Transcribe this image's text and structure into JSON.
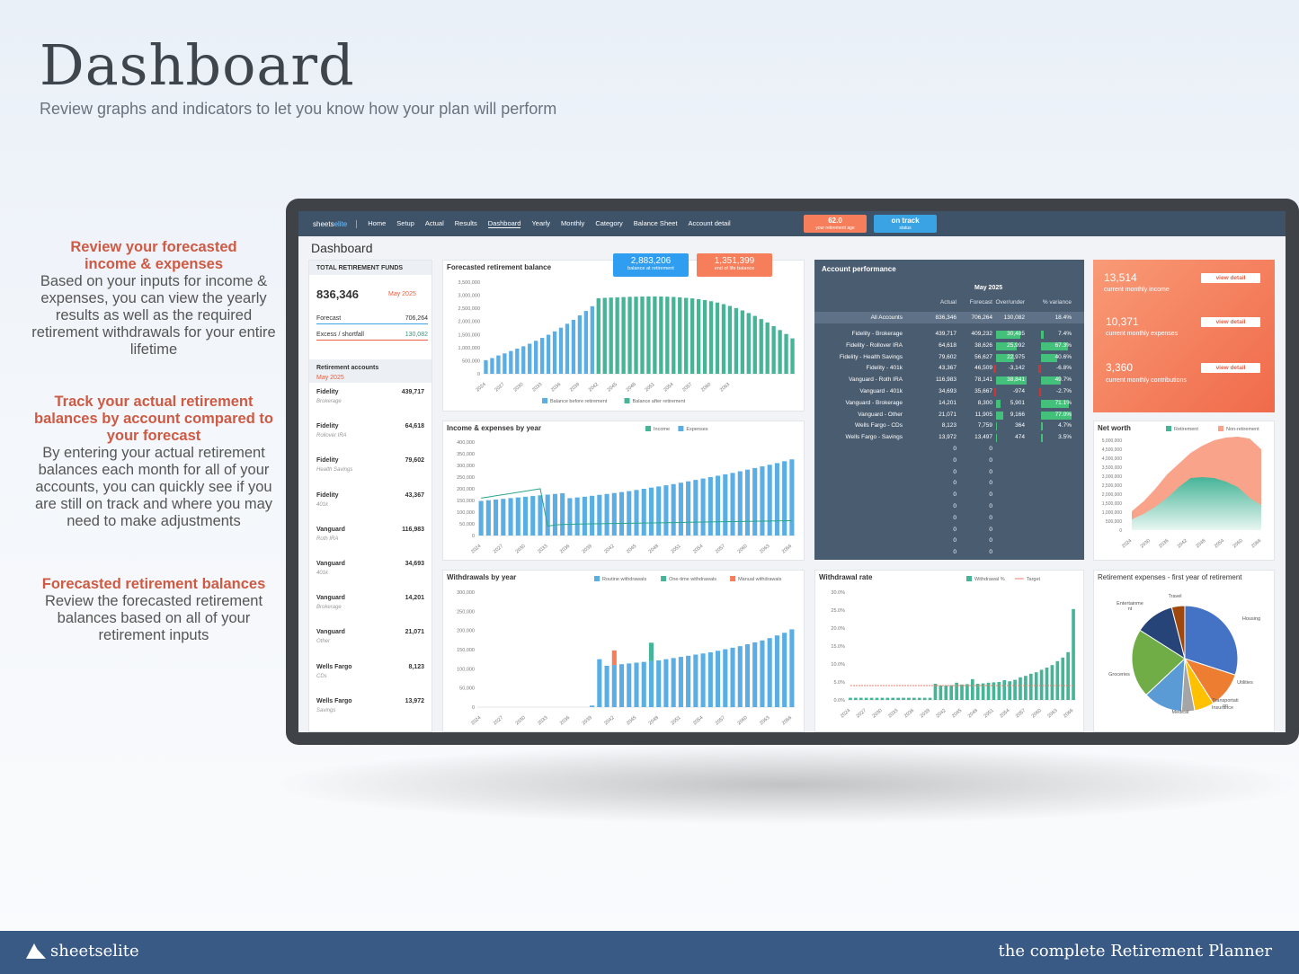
{
  "hero": {
    "title": "Dashboard",
    "subtitle": "Review graphs and indicators to let you know how your plan will perform"
  },
  "side_notes": [
    {
      "heading": "Review your forecasted income & expenses",
      "body": "Based on your inputs for income & expenses, you can view the yearly results as well as the required retirement withdrawals for your entire lifetime"
    },
    {
      "heading": "Track your actual retirement balances by account compared to your forecast",
      "body": "By entering your actual retirement balances each month for all of your accounts, you can quickly see if you are still on track and where you may need to make adjustments"
    },
    {
      "heading": "Forecasted retirement  balances",
      "body": "Review the forecasted retirement balances based on all of your retirement inputs"
    }
  ],
  "nav": {
    "brand_a": "sheets",
    "brand_b": "elite",
    "tabs": [
      "Home",
      "Setup",
      "Actual",
      "Results",
      "Dashboard",
      "Yearly",
      "Monthly",
      "Category",
      "Balance Sheet",
      "Account detail"
    ],
    "age_value": "62.0",
    "age_label": "your retirement age",
    "status_value": "on track",
    "status_label": "status"
  },
  "dashboard_title": "Dashboard",
  "funds": {
    "title": "TOTAL RETIREMENT FUNDS",
    "total": "836,346",
    "month": "May 2025",
    "forecast_label": "Forecast",
    "forecast_value": "706,264",
    "excess_label": "Excess / shortfall",
    "excess_value": "130,082",
    "accounts_title": "Retirement accounts",
    "accounts_month": "May 2025",
    "accounts": [
      {
        "name": "Fidelity",
        "type": "Brokerage",
        "value": "439,717"
      },
      {
        "name": "Fidelity",
        "type": "Rollover IRA",
        "value": "64,618"
      },
      {
        "name": "Fidelity",
        "type": "Health Savings",
        "value": "79,602"
      },
      {
        "name": "Fidelity",
        "type": "401k",
        "value": "43,367"
      },
      {
        "name": "Vanguard",
        "type": "Roth IRA",
        "value": "116,983"
      },
      {
        "name": "Vanguard",
        "type": "401k",
        "value": "34,693"
      },
      {
        "name": "Vanguard",
        "type": "Brokerage",
        "value": "14,201"
      },
      {
        "name": "Vanguard",
        "type": "Other",
        "value": "21,071"
      },
      {
        "name": "Wells Fargo",
        "type": "CDs",
        "value": "8,123"
      },
      {
        "name": "Wells Fargo",
        "type": "Savings",
        "value": "13,972"
      }
    ]
  },
  "badges": {
    "balance_value": "2,883,206",
    "balance_label": "balance at retirement",
    "end_value": "1,351,399",
    "end_label": "end of life balance"
  },
  "account_performance": {
    "title": "Account performance",
    "month": "May 2025",
    "headers": [
      "Actual",
      "Forecast",
      "Over/under",
      "% variance"
    ],
    "total": {
      "name": "All Accounts",
      "actual": "836,346",
      "forecast": "706,264",
      "over": "130,082",
      "pct": "18.4%"
    },
    "rows": [
      {
        "name": "Fidelity - Brokerage",
        "actual": "439,717",
        "forecast": "409,232",
        "over": "30,485",
        "pct": "7.4%",
        "o": 30485,
        "p": 7.4
      },
      {
        "name": "Fidelity - Rollover IRA",
        "actual": "64,618",
        "forecast": "38,626",
        "over": "25,992",
        "pct": "67.3%",
        "o": 25992,
        "p": 67.3
      },
      {
        "name": "Fidelity - Health Savings",
        "actual": "79,602",
        "forecast": "56,627",
        "over": "22,975",
        "pct": "40.6%",
        "o": 22975,
        "p": 40.6
      },
      {
        "name": "Fidelity - 401k",
        "actual": "43,367",
        "forecast": "46,509",
        "over": "-3,142",
        "pct": "-6.8%",
        "o": -3142,
        "p": -6.8
      },
      {
        "name": "Vanguard - Roth IRA",
        "actual": "116,983",
        "forecast": "78,141",
        "over": "38,841",
        "pct": "49.7%",
        "o": 38841,
        "p": 49.7
      },
      {
        "name": "Vanguard - 401k",
        "actual": "34,693",
        "forecast": "35,667",
        "over": "-974",
        "pct": "-2.7%",
        "o": -974,
        "p": -2.7
      },
      {
        "name": "Vanguard - Brokerage",
        "actual": "14,201",
        "forecast": "8,300",
        "over": "5,901",
        "pct": "71.1%",
        "o": 5901,
        "p": 71.1
      },
      {
        "name": "Vanguard - Other",
        "actual": "21,071",
        "forecast": "11,905",
        "over": "9,166",
        "pct": "77.0%",
        "o": 9166,
        "p": 77.0
      },
      {
        "name": "Wells Fargo - CDs",
        "actual": "8,123",
        "forecast": "7,759",
        "over": "364",
        "pct": "4.7%",
        "o": 364,
        "p": 4.7
      },
      {
        "name": "Wells Fargo - Savings",
        "actual": "13,972",
        "forecast": "13,497",
        "over": "474",
        "pct": "3.5%",
        "o": 474,
        "p": 3.5
      }
    ],
    "zero": "0"
  },
  "summary": {
    "income_value": "13,514",
    "income_label": "current monthly income",
    "expenses_value": "10,371",
    "expenses_label": "current monthly expenses",
    "contrib_value": "3,360",
    "contrib_label": "current monthly contributions",
    "view_label": "view detail"
  },
  "colors": {
    "blue": "#5aaee3",
    "green": "#45b497",
    "orange": "#f77e5a",
    "nav": "#3e5268",
    "perf": "#4a5c70"
  },
  "chart_data": [
    {
      "type": "bar",
      "title": "Forecasted retirement balance",
      "x_ticks": [
        "2024",
        "2027",
        "2030",
        "2033",
        "2036",
        "2039",
        "2042",
        "2045",
        "2048",
        "2051",
        "2054",
        "2057",
        "2060",
        "2063"
      ],
      "ylim": [
        0,
        3500000
      ],
      "y_ticks": [
        "0",
        "500,000",
        "1,000,000",
        "1,500,000",
        "2,000,000",
        "2,500,000",
        "3,000,000",
        "3,500,000"
      ],
      "series": [
        {
          "name": "Balance before retirement",
          "values": [
            520000,
            600000,
            700000,
            780000,
            870000,
            960000,
            1050000,
            1150000,
            1260000,
            1370000,
            1490000,
            1620000,
            1760000,
            1910000,
            2060000,
            2230000,
            2400000,
            2580000
          ]
        },
        {
          "name": "Balance after retirement",
          "values": [
            2883206,
            2900000,
            2910000,
            2920000,
            2930000,
            2940000,
            2945000,
            2950000,
            2955000,
            2955000,
            2950000,
            2945000,
            2935000,
            2920000,
            2900000,
            2880000,
            2850000,
            2815000,
            2770000,
            2720000,
            2660000,
            2590000,
            2510000,
            2420000,
            2320000,
            2210000,
            2090000,
            1960000,
            1820000,
            1670000,
            1520000,
            1351399
          ]
        }
      ]
    },
    {
      "type": "bar",
      "title": "Income & expenses by year",
      "x_ticks": [
        "2024",
        "2027",
        "2030",
        "2033",
        "2036",
        "2039",
        "2042",
        "2045",
        "2048",
        "2051",
        "2054",
        "2057",
        "2060",
        "2063",
        "2066"
      ],
      "ylim": [
        0,
        400000
      ],
      "y_ticks": [
        "0",
        "50,000",
        "100,000",
        "150,000",
        "200,000",
        "250,000",
        "300,000",
        "350,000",
        "400,000"
      ],
      "series": [
        {
          "name": "Income",
          "values": [
            160000,
            165000,
            170000,
            175000,
            180000,
            185000,
            190000,
            195000,
            200000,
            40000,
            45000,
            47000,
            48000,
            49000,
            49500,
            50000,
            50500,
            51000,
            51500,
            52000,
            52500,
            53000,
            53500,
            54000,
            54500,
            55000,
            55500,
            56000,
            56500,
            57000,
            57500,
            58000,
            58500,
            59000,
            59500,
            60000,
            60500,
            61000,
            61500,
            62000,
            62500,
            63000,
            63500
          ]
        },
        {
          "name": "Expenses",
          "values": [
            148000,
            151000,
            154000,
            157000,
            160000,
            163000,
            166000,
            169000,
            172000,
            175000,
            178000,
            181000,
            160000,
            163000,
            166000,
            170000,
            174000,
            178000,
            182000,
            186000,
            190000,
            195000,
            200000,
            205000,
            210000,
            215000,
            220000,
            226000,
            232000,
            238000,
            244000,
            250000,
            256000,
            262000,
            268000,
            275000,
            282000,
            289000,
            296000,
            303000,
            310000,
            318000,
            326000
          ]
        }
      ]
    },
    {
      "type": "bar",
      "title": "Withdrawals by year",
      "x_ticks": [
        "2024",
        "2027",
        "2030",
        "2033",
        "2036",
        "2039",
        "2042",
        "2045",
        "2048",
        "2051",
        "2054",
        "2057",
        "2060",
        "2063",
        "2066"
      ],
      "ylim": [
        0,
        300000
      ],
      "y_ticks": [
        "0",
        "50,000",
        "100,000",
        "150,000",
        "200,000",
        "250,000",
        "300,000"
      ],
      "series": [
        {
          "name": "Routine withdrawals",
          "values": [
            0,
            0,
            0,
            0,
            0,
            0,
            0,
            0,
            0,
            0,
            0,
            0,
            0,
            0,
            0,
            4000,
            125000,
            108000,
            110000,
            112000,
            114000,
            116000,
            118000,
            120000,
            122000,
            125000,
            128000,
            131000,
            134000,
            137000,
            140000,
            143000,
            147000,
            151000,
            155000,
            159000,
            164000,
            169000,
            174000,
            180000,
            187000,
            194000,
            203000
          ]
        },
        {
          "name": "One-time withdrawals",
          "values": [
            0,
            0,
            0,
            0,
            0,
            0,
            0,
            0,
            0,
            0,
            0,
            0,
            0,
            0,
            0,
            0,
            0,
            0,
            0,
            0,
            0,
            0,
            0,
            48000,
            0,
            0,
            0,
            0,
            0,
            0,
            0,
            0,
            0,
            0,
            0,
            0,
            0,
            0,
            0,
            0,
            0,
            0,
            0
          ]
        },
        {
          "name": "Manual withdrawals",
          "values": [
            0,
            0,
            0,
            0,
            0,
            0,
            0,
            0,
            0,
            0,
            0,
            0,
            0,
            0,
            0,
            0,
            0,
            0,
            38000,
            0,
            0,
            0,
            0,
            0,
            0,
            0,
            0,
            0,
            0,
            0,
            0,
            0,
            0,
            0,
            0,
            0,
            0,
            0,
            0,
            0,
            0,
            0,
            0
          ]
        }
      ]
    },
    {
      "type": "bar",
      "title": "Withdrawal rate",
      "x_ticks": [
        "2024",
        "2027",
        "2030",
        "2033",
        "2036",
        "2039",
        "2042",
        "2045",
        "2048",
        "2051",
        "2054",
        "2057",
        "2060",
        "2063",
        "2066"
      ],
      "ylim": [
        0,
        30
      ],
      "y_ticks": [
        "0.0%",
        "5.0%",
        "10.0%",
        "15.0%",
        "20.0%",
        "25.0%",
        "30.0%"
      ],
      "series": [
        {
          "name": "Withdrawal %",
          "values": [
            0.6,
            0.6,
            0.6,
            0.6,
            0.6,
            0.6,
            0.6,
            0.6,
            0.6,
            0.6,
            0.6,
            0.6,
            0.6,
            0.6,
            0.6,
            0.6,
            4.5,
            4.0,
            4.0,
            4.1,
            4.8,
            4.3,
            4.4,
            5.8,
            4.5,
            4.6,
            4.8,
            4.9,
            5.0,
            5.5,
            5.2,
            5.6,
            6.3,
            6.7,
            7.3,
            7.7,
            8.4,
            9.0,
            9.7,
            10.8,
            11.8,
            13.3,
            25.3
          ]
        },
        {
          "name": "Target",
          "values": [
            4,
            4,
            4,
            4,
            4,
            4,
            4,
            4,
            4,
            4,
            4,
            4,
            4,
            4,
            4,
            4,
            4,
            4,
            4,
            4,
            4,
            4,
            4,
            4,
            4,
            4,
            4,
            4,
            4,
            4,
            4,
            4,
            4,
            4,
            4,
            4,
            4,
            4,
            4,
            4,
            4,
            4,
            4
          ]
        }
      ]
    },
    {
      "type": "area",
      "title": "Net worth",
      "x_ticks": [
        "2024",
        "2030",
        "2036",
        "2042",
        "2048",
        "2054",
        "2060",
        "2066"
      ],
      "ylim": [
        0,
        5000000
      ],
      "y_ticks": [
        "0",
        "500,000",
        "1,000,000",
        "1,500,000",
        "2,000,000",
        "2,500,000",
        "3,000,000",
        "3,500,000",
        "4,000,000",
        "4,500,000",
        "5,000,000"
      ],
      "series": [
        {
          "name": "Retirement",
          "values": [
            600000,
            900000,
            1300000,
            1800000,
            2400000,
            2900000,
            2950000,
            2900000,
            2700000,
            2400000,
            1800000,
            1400000
          ]
        },
        {
          "name": "Non-retirement",
          "values": [
            1050000,
            1600000,
            2300000,
            3100000,
            3700000,
            4300000,
            4700000,
            5000000,
            5150000,
            5200000,
            5100000,
            4500000
          ]
        }
      ]
    },
    {
      "type": "pie",
      "title": "Retirement expenses - first year of retirement",
      "categories": [
        "Housing",
        "Utilities",
        "Transportati on",
        "Insurance",
        "Medical",
        "Groceries",
        "Entertainme nt",
        "Travel"
      ],
      "values": [
        30,
        11,
        6,
        4,
        12,
        21,
        12,
        4
      ],
      "colors": [
        "#4472c4",
        "#ed7d31",
        "#ffc000",
        "#a5a5a5",
        "#5b9bd5",
        "#70ad47",
        "#264478",
        "#9e480e"
      ]
    }
  ],
  "footer": {
    "logo_a": "sheets",
    "logo_b": "elite",
    "right": "the complete Retirement Planner"
  }
}
